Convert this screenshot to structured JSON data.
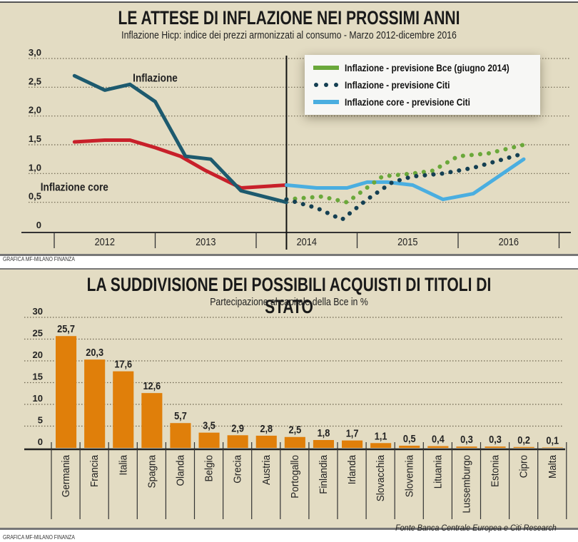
{
  "chart_data": [
    {
      "type": "line",
      "title": "LE ATTESE DI INFLAZIONE NEI PROSSIMI ANNI",
      "subtitle": "Inflazione Hicp: indice dei prezzi armonizzati al consumo - Marzo 2012-dicembre 2016",
      "xlabel": "",
      "ylabel": "",
      "ylim": [
        0,
        3.0
      ],
      "yticks": [
        "0",
        "0,5",
        "1,0",
        "1,5",
        "2,0",
        "2,5",
        "3,0"
      ],
      "ytick_values": [
        0,
        0.5,
        1.0,
        1.5,
        2.0,
        2.5,
        3.0
      ],
      "x_year_labels": [
        "2012",
        "2013",
        "2014",
        "2015",
        "2016"
      ],
      "xlim_years": [
        2011.75,
        2016.8
      ],
      "today_marker": 2014.3,
      "grid": true,
      "legend_position": "top-right",
      "annotations": [
        {
          "text": "Inflazione",
          "x": 2013.0,
          "y": 2.6
        },
        {
          "text": "Inflazione core",
          "x": 2012.2,
          "y": 0.7
        }
      ],
      "series": [
        {
          "name": "Inflazione",
          "style": "solid",
          "color": "#1d5a6e",
          "x": [
            2012.2,
            2012.5,
            2012.75,
            2013.0,
            2013.3,
            2013.55,
            2013.85,
            2014.3
          ],
          "y": [
            2.7,
            2.45,
            2.55,
            2.25,
            1.3,
            1.25,
            0.7,
            0.5
          ]
        },
        {
          "name": "Inflazione core",
          "style": "solid",
          "color": "#c8202a",
          "x": [
            2012.2,
            2012.5,
            2012.75,
            2013.0,
            2013.25,
            2013.5,
            2013.85,
            2014.3
          ],
          "y": [
            1.55,
            1.58,
            1.58,
            1.45,
            1.3,
            1.05,
            0.75,
            0.8
          ]
        },
        {
          "name": "Inflazione - previsione Bce (giugno 2014)",
          "style": "dotted",
          "color": "#6aa83a",
          "x": [
            2014.3,
            2014.65,
            2014.9,
            2015.25,
            2015.55,
            2015.75,
            2016.0,
            2016.3,
            2016.65
          ],
          "y": [
            0.55,
            0.6,
            0.5,
            0.95,
            1.0,
            1.05,
            1.3,
            1.35,
            1.5
          ]
        },
        {
          "name": "Inflazione - previsione Citi",
          "style": "dotted",
          "color": "#143f52",
          "x": [
            2014.3,
            2014.6,
            2014.85,
            2015.1,
            2015.35,
            2015.55,
            2015.85,
            2016.15,
            2016.65
          ],
          "y": [
            0.55,
            0.4,
            0.2,
            0.55,
            0.85,
            0.95,
            1.0,
            1.1,
            1.35
          ]
        },
        {
          "name": "Inflazione core - previsione Citi",
          "style": "solid",
          "color": "#4aaee0",
          "x": [
            2014.3,
            2014.6,
            2014.9,
            2015.1,
            2015.3,
            2015.55,
            2015.85,
            2016.15,
            2016.65
          ],
          "y": [
            0.8,
            0.75,
            0.75,
            0.85,
            0.85,
            0.8,
            0.55,
            0.65,
            1.25
          ]
        }
      ]
    },
    {
      "type": "bar",
      "title": "LA SUDDIVISIONE DEI POSSIBILI ACQUISTI DI TITOLI DI STATO",
      "subtitle": "Partecipazione al capitale della Bce in %",
      "xlabel": "",
      "ylabel": "",
      "ylim": [
        0,
        30
      ],
      "yticks": [
        "0",
        "5",
        "10",
        "15",
        "20",
        "25",
        "30"
      ],
      "ytick_values": [
        0,
        5,
        10,
        15,
        20,
        25,
        30
      ],
      "grid": true,
      "bar_color": "#e07f0a",
      "categories": [
        "Germania",
        "Francia",
        "Italia",
        "Spagna",
        "Olanda",
        "Belgio",
        "Grecia",
        "Austria",
        "Portogallo",
        "Finlandia",
        "Irlanda",
        "Slovacchia",
        "Slovennia",
        "Lituania",
        "Lussemburgo",
        "Estonia",
        "Cipro",
        "Malta"
      ],
      "values": [
        25.7,
        20.3,
        17.6,
        12.6,
        5.7,
        3.5,
        2.9,
        2.8,
        2.5,
        1.8,
        1.7,
        1.1,
        0.5,
        0.4,
        0.3,
        0.3,
        0.2,
        0.1
      ],
      "value_labels": [
        "25,7",
        "20,3",
        "17,6",
        "12,6",
        "5,7",
        "3,5",
        "2,9",
        "2,8",
        "2,5",
        "1,8",
        "1,7",
        "1,1",
        "0,5",
        "0,4",
        "0,3",
        "0,3",
        "0,2",
        "0,1"
      ]
    }
  ],
  "credits": {
    "top": "GRAFICA MF-MILANO FINANZA",
    "bottom": "GRAFICA MF-MILANO FINANZA",
    "source": "Fonte Banca Centrale Europea e Citi Research"
  },
  "colors": {
    "panel_bg": "#e3dcc3",
    "grid": "#6e6650",
    "axis": "#222222"
  }
}
